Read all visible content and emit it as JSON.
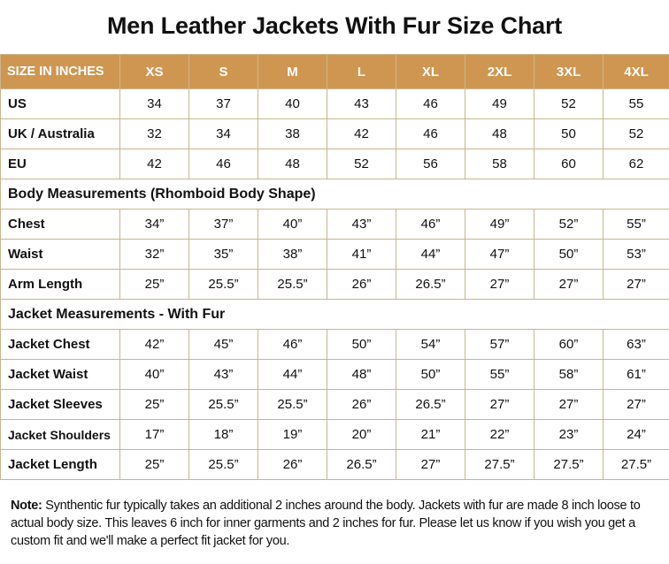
{
  "title": "Men Leather Jackets With Fur Size Chart",
  "colors": {
    "header_bg": "#cf9651",
    "header_text": "#ffffff",
    "border": "#c9b58f"
  },
  "table": {
    "header": [
      "SIZE IN INCHES",
      "XS",
      "S",
      "M",
      "L",
      "XL",
      "2XL",
      "3XL",
      "4XL"
    ],
    "rows": [
      {
        "label": "US",
        "values": [
          "34",
          "37",
          "40",
          "43",
          "46",
          "49",
          "52",
          "55"
        ]
      },
      {
        "label": "UK / Australia",
        "values": [
          "32",
          "34",
          "38",
          "42",
          "46",
          "48",
          "50",
          "52"
        ]
      },
      {
        "label": "EU",
        "values": [
          "42",
          "46",
          "48",
          "52",
          "56",
          "58",
          "60",
          "62"
        ]
      },
      {
        "section": "Body Measurements (Rhomboid Body Shape)"
      },
      {
        "label": "Chest",
        "values": [
          "34”",
          "37”",
          "40”",
          "43”",
          "46”",
          "49”",
          "52”",
          "55”"
        ]
      },
      {
        "label": "Waist",
        "values": [
          "32”",
          "35”",
          "38”",
          "41”",
          "44”",
          "47”",
          "50”",
          "53”"
        ]
      },
      {
        "label": "Arm Length",
        "values": [
          "25”",
          "25.5”",
          "25.5”",
          "26”",
          "26.5”",
          "27”",
          "27”",
          "27”"
        ]
      },
      {
        "section": "Jacket Measurements - With Fur"
      },
      {
        "label": "Jacket Chest",
        "values": [
          "42”",
          "45”",
          "46”",
          "50”",
          "54”",
          "57”",
          "60”",
          "63”"
        ]
      },
      {
        "label": "Jacket Waist",
        "values": [
          "40”",
          "43”",
          "44”",
          "48”",
          "50”",
          "55”",
          "58”",
          "61”"
        ]
      },
      {
        "label": "Jacket Sleeves",
        "values": [
          "25”",
          "25.5”",
          "25.5”",
          "26”",
          "26.5”",
          "27”",
          "27”",
          "27”"
        ]
      },
      {
        "label": "Jacket Shoulders",
        "values": [
          "17”",
          "18”",
          "19”",
          "20”",
          "21”",
          "22”",
          "23”",
          "24”"
        ]
      },
      {
        "label": "Jacket Length",
        "values": [
          "25”",
          "25.5”",
          "26”",
          "26.5”",
          "27”",
          "27.5”",
          "27.5”",
          "27.5”"
        ]
      }
    ]
  },
  "note": {
    "label": "Note:",
    "text": " Synthentic fur typically takes an additional 2 inches around the body. Jackets with fur are made 8 inch loose to actual body size. This leaves 6 inch for inner garments and 2 inches for fur. Please let us know if you wish you get a custom fit and we'll make a perfect fit jacket for you."
  }
}
